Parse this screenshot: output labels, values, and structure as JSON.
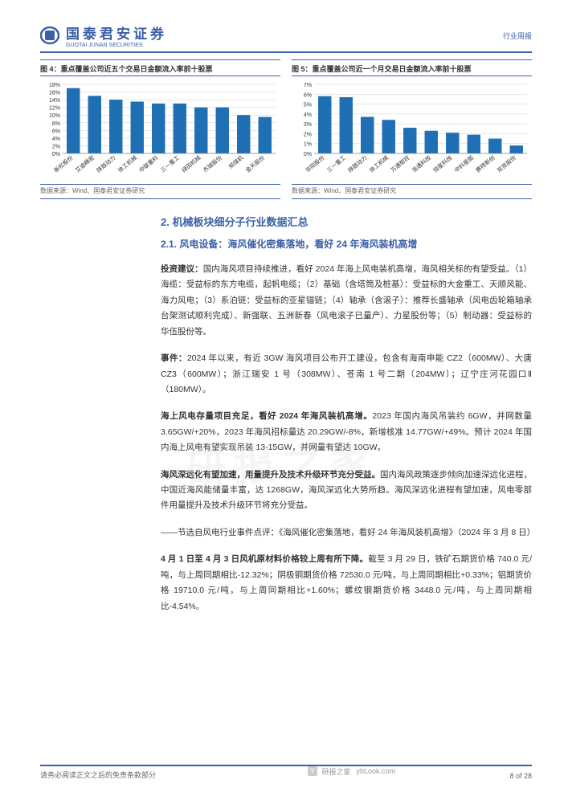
{
  "header": {
    "logo_cn": "国泰君安证券",
    "logo_en": "GUOTAI JUNAN SECURITIES",
    "right_text": "行业周报"
  },
  "chart4": {
    "title": "图 4：重点覆盖公司近五个交易日金额流入率前十股票",
    "type": "bar",
    "categories": [
      "新松股份",
      "艾迪精密",
      "陕鼓动力",
      "徐工机械",
      "中联重科",
      "三一重工",
      "绿田机械",
      "杰瑞股份",
      "郑煤机",
      "金天股份"
    ],
    "values": [
      17,
      15,
      14,
      13.5,
      13,
      13,
      12,
      12,
      10,
      9.5
    ],
    "bar_color": "#1f6fb5",
    "ylim": [
      0,
      18
    ],
    "ytick_step": 2,
    "grid_color": "#d0d0d0",
    "background_color": "#ffffff",
    "source": "数据来源：Wind、国泰君安证券研究"
  },
  "chart5": {
    "title": "图 5：重点覆盖公司近一个月交易日金额流入率前十股票",
    "type": "bar",
    "categories": [
      "华阳股份",
      "三一重工",
      "陕鼓动力",
      "徐工机械",
      "万通智控",
      "浩通科技",
      "恒星科技",
      "中科星图",
      "赛特新创",
      "双良股份"
    ],
    "values": [
      5.8,
      5.7,
      3.7,
      3.4,
      2.6,
      2.3,
      2.1,
      1.9,
      1.5,
      0.8
    ],
    "bar_color": "#1f6fb5",
    "ylim": [
      0,
      7
    ],
    "ytick_step": 1,
    "grid_color": "#d0d0d0",
    "background_color": "#ffffff",
    "source": "数据来源：Wind、国泰君安证券研究"
  },
  "watermark_text": "研报之家",
  "section": {
    "h1": "2.  机械板块细分子行业数据汇总",
    "h2": "2.1.  风电设备：海风催化密集落地，看好 24 年海风装机高增"
  },
  "paragraphs": [
    {
      "bold": "投资建议：",
      "text": "国内海风项目持续推进，看好 2024 年海上风电装机高增，海风相关标的有望受益。（1）海缆：受益标的东方电缆，起帆电缆；（2）基础（含塔筒及桩基）：受益标的大金重工、天顺风能、海力风电；（3）系泊链：受益标的亚星锚链；（4）轴承（含滚子）：推荐长盛轴承（风电齿轮箱轴承台架测试顺利完成）、新强联、五洲新春（风电滚子已量产）、力星股份等；（5）制动器：受益标的华伍股份等。"
    },
    {
      "bold": "事件：",
      "text": "2024 年以来，有近 3GW 海风项目公布开工建设，包含有海南申能 CZ2（600MW）、大唐 CZ3（600MW）；浙江瑞安 1 号（308MW）、苍南 1 号二期（204MW）；辽宁庄河花园口Ⅱ（180MW）。"
    },
    {
      "bold": "海上风电存量项目充足，看好 2024 年海风装机高增。",
      "text": "2023 年国内海风吊装约 6GW，并网数量 3.65GW/+20%，2023 年海风招标量达 20.29GW/-8%，新增核准 14.77GW/+49%。预计 2024 年国内海上风电有望实现吊装 13-15GW，并网量有望达 10GW。"
    },
    {
      "bold": "海风深远化有望加速，用量提升及技术升级环节充分受益。",
      "text": "国内海风政策逐步倾向加速深远化进程，中国近海风能储量丰富，达 1268GW，海风深远化大势所趋。海风深远化进程有望加速，风电零部件用量提升及技术升级环节将充分受益。"
    },
    {
      "bold": "",
      "text": "——节选自风电行业事件点评：《海风催化密集落地，看好 24 年海风装机高增》（2024 年 3 月 8 日）"
    },
    {
      "bold": "4 月 1 日至 4 月 3 日风机原材料价格较上周有所下降。",
      "text": "截至 3 月 29 日，铁矿石期货价格 740.0 元/吨，与上周同期相比-12.32%；阴极铜期货价格 72530.0 元/吨，与上周同期相比+0.33%；铝期货价格 19710.0 元/吨，与上周同期相比+1.60%；螺纹钢期货价格 3448.0 元/吨，与上周同期相比-4.54%。"
    }
  ],
  "footer": {
    "disclaimer": "请务必阅读正文之后的免责条款部分",
    "site": "ybLook.com",
    "site_label": "研报之家",
    "page": "8 of 28"
  }
}
